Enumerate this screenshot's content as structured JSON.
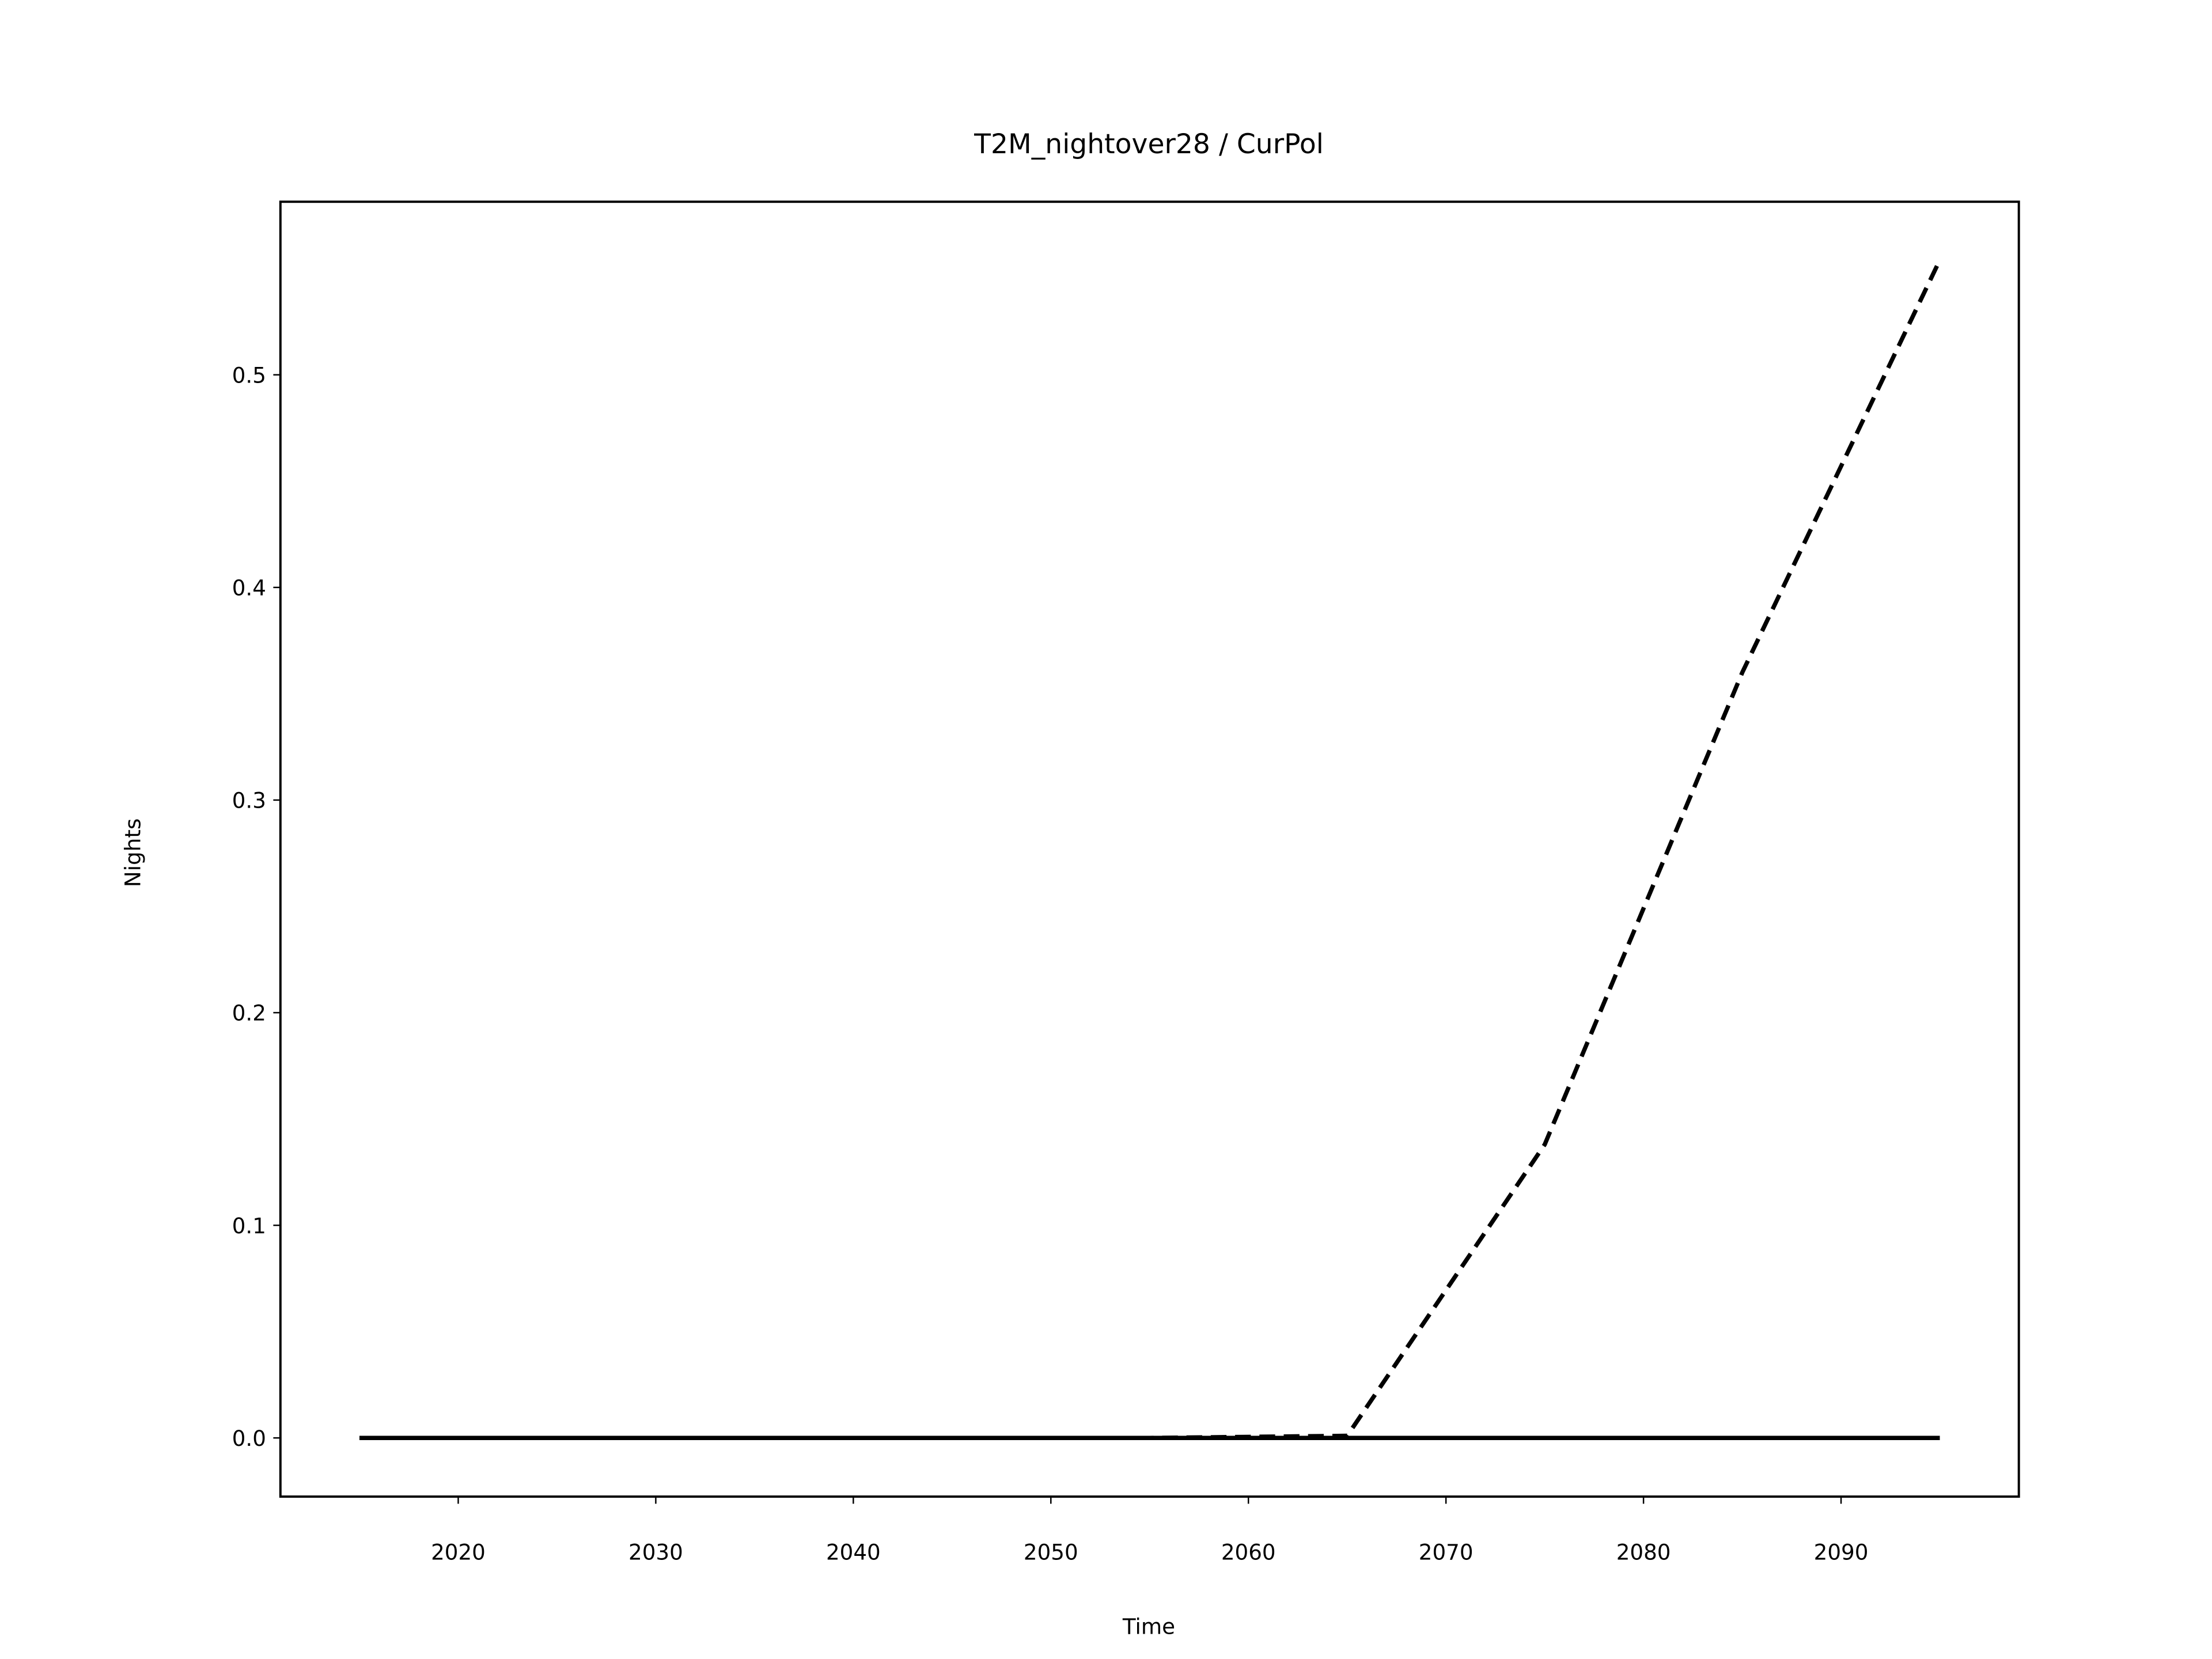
{
  "chart_data": {
    "type": "line",
    "title": "T2M_nightover28 / CurPol",
    "xlabel": "Time",
    "ylabel": "Nights",
    "x": [
      2015,
      2025,
      2035,
      2045,
      2055,
      2065,
      2075,
      2085,
      2095
    ],
    "series": [
      {
        "color": "#000000",
        "dash": true,
        "values": [
          0,
          0,
          0,
          0,
          0,
          0.001,
          0.138,
          0.36,
          0.554
        ]
      },
      {
        "color": "#000000",
        "dash": false,
        "values": [
          0,
          0,
          0,
          0,
          0,
          0,
          0,
          0,
          0
        ]
      }
    ],
    "xlim": [
      2011,
      2099
    ],
    "xticks": [
      2020,
      2030,
      2040,
      2050,
      2060,
      2070,
      2080,
      2090
    ],
    "ylim": [
      -0.0276,
      0.5814
    ],
    "yticks": [
      {
        "value": 0,
        "label": "0.0"
      },
      0.1,
      0.2,
      0.3,
      0.4,
      0.5
    ],
    "grid": false
  }
}
